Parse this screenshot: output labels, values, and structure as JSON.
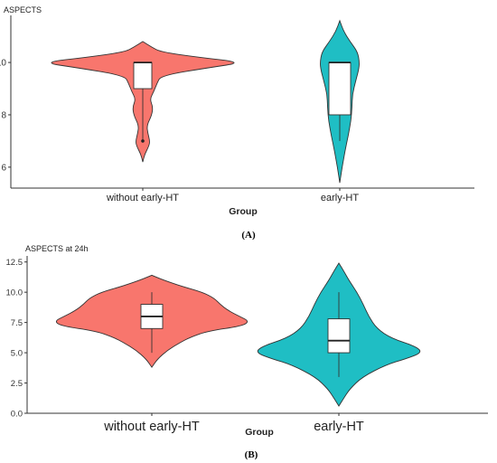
{
  "panels": [
    {
      "panel_label": "(A)",
      "chart_data": {
        "type": "violin",
        "title": "ASPECTS",
        "xlabel": "Group",
        "ylabel": "",
        "ylim": [
          5.2,
          11.8
        ],
        "yticks": [
          6,
          8,
          10
        ],
        "categories": [
          "without early-HT",
          "early-HT"
        ],
        "colors": [
          "#f8766d",
          "#1fbec4"
        ],
        "grid": false,
        "legend": "none",
        "series": [
          {
            "category": "without early-HT",
            "box": {
              "min": 7,
              "q1": 9,
              "median": 10,
              "q3": 10,
              "max": 10
            },
            "outliers": [
              7
            ],
            "density": [
              [
                6.2,
                0.0
              ],
              [
                6.5,
                0.02
              ],
              [
                6.8,
                0.06
              ],
              [
                7.0,
                0.07
              ],
              [
                7.3,
                0.05
              ],
              [
                7.6,
                0.04
              ],
              [
                8.0,
                0.09
              ],
              [
                8.3,
                0.1
              ],
              [
                8.6,
                0.07
              ],
              [
                8.9,
                0.11
              ],
              [
                9.2,
                0.14
              ],
              [
                9.5,
                0.18
              ],
              [
                9.8,
                0.65
              ],
              [
                10.0,
                1.0
              ],
              [
                10.2,
                0.55
              ],
              [
                10.4,
                0.18
              ],
              [
                10.6,
                0.08
              ],
              [
                10.8,
                0.0
              ]
            ]
          },
          {
            "category": "early-HT",
            "box": {
              "min": 7,
              "q1": 8,
              "median": 10,
              "q3": 10,
              "max": 10
            },
            "outliers": [],
            "density": [
              [
                5.4,
                0.0
              ],
              [
                6.0,
                0.05
              ],
              [
                6.6,
                0.11
              ],
              [
                7.2,
                0.18
              ],
              [
                7.8,
                0.24
              ],
              [
                8.3,
                0.26
              ],
              [
                8.8,
                0.27
              ],
              [
                9.3,
                0.34
              ],
              [
                9.7,
                0.4
              ],
              [
                10.0,
                0.42
              ],
              [
                10.4,
                0.38
              ],
              [
                10.8,
                0.22
              ],
              [
                11.2,
                0.08
              ],
              [
                11.6,
                0.0
              ]
            ]
          }
        ]
      }
    },
    {
      "panel_label": "(B)",
      "chart_data": {
        "type": "violin",
        "title": "ASPECTS at 24h",
        "xlabel": "Group",
        "ylabel": "",
        "ylim": [
          0,
          13
        ],
        "yticks": [
          0.0,
          2.5,
          5.0,
          7.5,
          10.0,
          12.5
        ],
        "categories": [
          "without early-HT",
          "early-HT"
        ],
        "colors": [
          "#f8766d",
          "#1fbec4"
        ],
        "grid": false,
        "legend": "none",
        "series": [
          {
            "category": "without early-HT",
            "box": {
              "min": 5,
              "q1": 7,
              "median": 8,
              "q3": 9,
              "max": 10
            },
            "outliers": [],
            "density": [
              [
                3.8,
                0.0
              ],
              [
                4.5,
                0.06
              ],
              [
                5.2,
                0.16
              ],
              [
                5.8,
                0.28
              ],
              [
                6.3,
                0.4
              ],
              [
                6.8,
                0.58
              ],
              [
                7.2,
                0.92
              ],
              [
                7.6,
                1.0
              ],
              [
                8.0,
                0.9
              ],
              [
                8.5,
                0.78
              ],
              [
                9.0,
                0.7
              ],
              [
                9.5,
                0.64
              ],
              [
                10.0,
                0.52
              ],
              [
                10.5,
                0.3
              ],
              [
                11.0,
                0.12
              ],
              [
                11.4,
                0.0
              ]
            ]
          },
          {
            "category": "early-HT",
            "box": {
              "min": 3,
              "q1": 5,
              "median": 6,
              "q3": 7.8,
              "max": 10
            },
            "outliers": [],
            "density": [
              [
                0.6,
                0.0
              ],
              [
                1.2,
                0.05
              ],
              [
                2.0,
                0.12
              ],
              [
                3.0,
                0.26
              ],
              [
                4.0,
                0.52
              ],
              [
                4.5,
                0.74
              ],
              [
                5.0,
                0.92
              ],
              [
                5.5,
                0.86
              ],
              [
                6.2,
                0.58
              ],
              [
                7.0,
                0.42
              ],
              [
                8.0,
                0.33
              ],
              [
                9.0,
                0.27
              ],
              [
                10.0,
                0.2
              ],
              [
                11.0,
                0.11
              ],
              [
                11.8,
                0.05
              ],
              [
                12.4,
                0.0
              ]
            ]
          }
        ]
      }
    }
  ]
}
